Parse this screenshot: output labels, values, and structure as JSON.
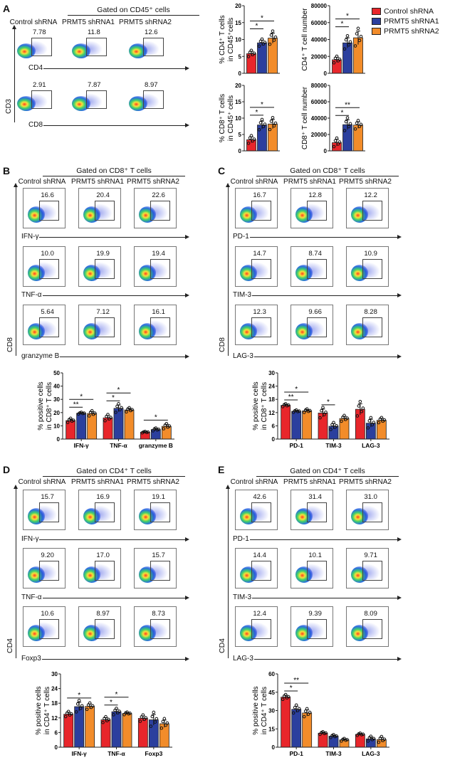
{
  "colors": {
    "control": "#e8262b",
    "shRNA1": "#2b3f9e",
    "shRNA2": "#f28c2a"
  },
  "legend": [
    {
      "label": "Control shRNA",
      "color_key": "control"
    },
    {
      "label": "PRMT5 shRNA1",
      "color_key": "shRNA1"
    },
    {
      "label": "PRMT5 shRNA2",
      "color_key": "shRNA2"
    }
  ],
  "panels": {
    "A": {
      "letter": "A",
      "header": "Gated on CD45⁺ cells",
      "columns": [
        "Control shRNA",
        "PRMT5 shRNA1",
        "PRMT5 shRNA2"
      ],
      "y_axis": "CD3",
      "rows": [
        {
          "marker": "CD4",
          "values": [
            "7.78",
            "11.8",
            "12.6"
          ]
        },
        {
          "marker": "CD8",
          "values": [
            "2.91",
            "7.87",
            "8.97"
          ]
        }
      ]
    },
    "B": {
      "letter": "B",
      "header": "Gated on CD8⁺ T cells",
      "columns": [
        "Control shRNA",
        "PRMT5 shRNA1",
        "PRMT5 shRNA2"
      ],
      "y_axis": "CD8",
      "rows": [
        {
          "marker": "IFN-γ",
          "values": [
            "16.6",
            "20.4",
            "22.6"
          ]
        },
        {
          "marker": "TNF-α",
          "values": [
            "10.0",
            "19.9",
            "19.4"
          ]
        },
        {
          "marker": "granzyme  B",
          "values": [
            "5.64",
            "7.12",
            "16.1"
          ]
        }
      ]
    },
    "C": {
      "letter": "C",
      "header": "Gated on CD8⁺ T cells",
      "columns": [
        "Control shRNA",
        "PRMT5 shRNA1",
        "PRMT5 shRNA2"
      ],
      "y_axis": "CD8",
      "rows": [
        {
          "marker": "PD-1",
          "values": [
            "16.7",
            "12.8",
            "12.2"
          ]
        },
        {
          "marker": "TIM-3",
          "values": [
            "14.7",
            "8.74",
            "10.9"
          ]
        },
        {
          "marker": "LAG-3",
          "values": [
            "12.3",
            "9.66",
            "8.28"
          ]
        }
      ]
    },
    "D": {
      "letter": "D",
      "header": "Gated on CD4⁺ T cells",
      "columns": [
        "Control shRNA",
        "PRMT5 shRNA1",
        "PRMT5 shRNA2"
      ],
      "y_axis": "CD4",
      "rows": [
        {
          "marker": "IFN-γ",
          "values": [
            "15.7",
            "16.9",
            "19.1"
          ]
        },
        {
          "marker": "TNF-α",
          "values": [
            "9.20",
            "17.0",
            "15.7"
          ]
        },
        {
          "marker": "Foxp3",
          "values": [
            "10.6",
            "8.97",
            "8.73"
          ]
        }
      ]
    },
    "E": {
      "letter": "E",
      "header": "Gated on CD4⁺ T cells",
      "columns": [
        "Control shRNA",
        "PRMT5 shRNA1",
        "PRMT5 shRNA2"
      ],
      "y_axis": "CD4",
      "rows": [
        {
          "marker": "PD-1",
          "values": [
            "42.6",
            "31.4",
            "31.0"
          ]
        },
        {
          "marker": "TIM-3",
          "values": [
            "14.4",
            "10.1",
            "9.71"
          ]
        },
        {
          "marker": "LAG-3",
          "values": [
            "12.4",
            "9.39",
            "8.09"
          ]
        }
      ]
    }
  },
  "chart_data": [
    {
      "id": "A1",
      "type": "bar",
      "ylabel": [
        "% CD4⁺ T cells",
        "in CD45⁺cells"
      ],
      "ylim": [
        0,
        20
      ],
      "yticks": [
        "0",
        "5",
        "10",
        "15",
        "20"
      ],
      "categories": [
        ""
      ],
      "series": [
        {
          "name": "Control shRNA",
          "values": [
            5.8
          ],
          "err": [
            0.7
          ]
        },
        {
          "name": "PRMT5 shRNA1",
          "values": [
            9.0
          ],
          "err": [
            0.8
          ]
        },
        {
          "name": "PRMT5 shRNA2",
          "values": [
            10.4
          ],
          "err": [
            1.5
          ]
        }
      ],
      "significance": [
        {
          "cat": 0,
          "from": 0,
          "to": 1,
          "label": "*"
        },
        {
          "cat": 0,
          "from": 0,
          "to": 2,
          "label": "*"
        }
      ]
    },
    {
      "id": "A2",
      "type": "bar",
      "ylabel": [
        "CD4⁺ T cell number"
      ],
      "ylim": [
        0,
        80000
      ],
      "yticks": [
        "0",
        "20000",
        "40000",
        "60000",
        "80000"
      ],
      "categories": [
        ""
      ],
      "series": [
        {
          "name": "Control shRNA",
          "values": [
            16000
          ],
          "err": [
            3000
          ]
        },
        {
          "name": "PRMT5 shRNA1",
          "values": [
            36000
          ],
          "err": [
            6000
          ]
        },
        {
          "name": "PRMT5 shRNA2",
          "values": [
            42000
          ],
          "err": [
            8000
          ]
        }
      ],
      "significance": [
        {
          "cat": 0,
          "from": 0,
          "to": 1,
          "label": "*"
        },
        {
          "cat": 0,
          "from": 0,
          "to": 2,
          "label": "*"
        }
      ]
    },
    {
      "id": "A3",
      "type": "bar",
      "ylabel": [
        "% CD8⁺ T cells",
        "in CD45⁺ cells"
      ],
      "ylim": [
        0,
        20
      ],
      "yticks": [
        "0",
        "5",
        "10",
        "15",
        "20"
      ],
      "categories": [
        ""
      ],
      "series": [
        {
          "name": "Control shRNA",
          "values": [
            3.4
          ],
          "err": [
            0.9
          ]
        },
        {
          "name": "PRMT5 shRNA1",
          "values": [
            7.9
          ],
          "err": [
            1.2
          ]
        },
        {
          "name": "PRMT5 shRNA2",
          "values": [
            8.2
          ],
          "err": [
            1.4
          ]
        }
      ],
      "significance": [
        {
          "cat": 0,
          "from": 0,
          "to": 1,
          "label": "*"
        },
        {
          "cat": 0,
          "from": 0,
          "to": 2,
          "label": "*"
        }
      ]
    },
    {
      "id": "A4",
      "type": "bar",
      "ylabel": [
        "CD8⁺ T cell number"
      ],
      "ylim": [
        0,
        80000
      ],
      "yticks": [
        "0",
        "20000",
        "40000",
        "60000",
        "80000"
      ],
      "categories": [
        ""
      ],
      "series": [
        {
          "name": "Control shRNA",
          "values": [
            10000
          ],
          "err": [
            4000
          ]
        },
        {
          "name": "PRMT5 shRNA1",
          "values": [
            32000
          ],
          "err": [
            6000
          ]
        },
        {
          "name": "PRMT5 shRNA2",
          "values": [
            31500
          ],
          "err": [
            4000
          ]
        }
      ],
      "significance": [
        {
          "cat": 0,
          "from": 0,
          "to": 1,
          "label": "*"
        },
        {
          "cat": 0,
          "from": 0,
          "to": 2,
          "label": "**"
        }
      ]
    },
    {
      "id": "B",
      "type": "bar",
      "ylabel": [
        "% positive cells",
        "in CD8⁺ T cells"
      ],
      "ylim": [
        0,
        50
      ],
      "yticks": [
        "0",
        "10",
        "20",
        "30",
        "40",
        "50"
      ],
      "categories": [
        "IFN-γ",
        "TNF-α",
        "granzyme B"
      ],
      "series": [
        {
          "name": "Control shRNA",
          "values": [
            14,
            16,
            5.2
          ],
          "err": [
            1.2,
            1.8,
            0.4
          ]
        },
        {
          "name": "PRMT5 shRNA1",
          "values": [
            19.5,
            23.2,
            7.2
          ],
          "err": [
            0.5,
            2.5,
            0.8
          ]
        },
        {
          "name": "PRMT5 shRNA2",
          "values": [
            19.3,
            22,
            9.6
          ],
          "err": [
            1.5,
            1.2,
            1.5
          ]
        }
      ],
      "significance": [
        {
          "cat": 0,
          "from": 0,
          "to": 1,
          "label": "**"
        },
        {
          "cat": 0,
          "from": 0,
          "to": 2,
          "label": "*"
        },
        {
          "cat": 1,
          "from": 0,
          "to": 1,
          "label": "*"
        },
        {
          "cat": 1,
          "from": 0,
          "to": 2,
          "label": "*"
        },
        {
          "cat": 2,
          "from": 0,
          "to": 2,
          "label": "*"
        }
      ]
    },
    {
      "id": "C",
      "type": "bar",
      "ylabel": [
        "% positive cells",
        "in CD8⁺ T cells"
      ],
      "ylim": [
        0,
        30
      ],
      "yticks": [
        "0",
        "6",
        "12",
        "18",
        "24",
        "30"
      ],
      "categories": [
        "PD-1",
        "TIM-3",
        "LAG-3"
      ],
      "series": [
        {
          "name": "Control shRNA",
          "values": [
            15.3,
            11.8,
            13.5
          ],
          "err": [
            0.5,
            1.8,
            2.5
          ]
        },
        {
          "name": "PRMT5 shRNA1",
          "values": [
            12.6,
            5.8,
            7.2
          ],
          "err": [
            0.4,
            1.2,
            1.8
          ]
        },
        {
          "name": "PRMT5 shRNA2",
          "values": [
            12.8,
            9.3,
            8.5
          ],
          "err": [
            0.6,
            1.0,
            0.9
          ]
        }
      ],
      "significance": [
        {
          "cat": 0,
          "from": 0,
          "to": 1,
          "label": "**"
        },
        {
          "cat": 0,
          "from": 0,
          "to": 2,
          "label": "*"
        },
        {
          "cat": 1,
          "from": 0,
          "to": 1,
          "label": "*"
        }
      ]
    },
    {
      "id": "D",
      "type": "bar",
      "ylabel": [
        "% positive cells",
        "in CD4⁺ T cells"
      ],
      "ylim": [
        0,
        30
      ],
      "yticks": [
        "0",
        "6",
        "12",
        "18",
        "24",
        "30"
      ],
      "categories": [
        "IFN-γ",
        "TNF-α",
        "Foxp3"
      ],
      "series": [
        {
          "name": "Control shRNA",
          "values": [
            13.5,
            11.2,
            11.8
          ],
          "err": [
            0.8,
            0.9,
            1.0
          ]
        },
        {
          "name": "PRMT5 shRNA1",
          "values": [
            16.6,
            14.5,
            11.2
          ],
          "err": [
            1.8,
            1.0,
            2.2
          ]
        },
        {
          "name": "PRMT5 shRNA2",
          "values": [
            16.7,
            13.8,
            9.6
          ],
          "err": [
            1.0,
            0.4,
            1.5
          ]
        }
      ],
      "significance": [
        {
          "cat": 0,
          "from": 0,
          "to": 2,
          "label": "*"
        },
        {
          "cat": 1,
          "from": 0,
          "to": 1,
          "label": "*"
        },
        {
          "cat": 1,
          "from": 0,
          "to": 2,
          "label": "*"
        }
      ]
    },
    {
      "id": "E",
      "type": "bar",
      "ylabel": [
        "% positive cells",
        "in CD4⁺ T cells"
      ],
      "ylim": [
        0,
        60
      ],
      "yticks": [
        "0",
        "15",
        "30",
        "45",
        "60"
      ],
      "categories": [
        "PD-1",
        "TIM-3",
        "LAG-3"
      ],
      "series": [
        {
          "name": "Control shRNA",
          "values": [
            41,
            11.5,
            10.5
          ],
          "err": [
            1.5,
            0.8,
            0.7
          ]
        },
        {
          "name": "PRMT5 shRNA1",
          "values": [
            31,
            9,
            6.8
          ],
          "err": [
            2.5,
            0.9,
            1.5
          ]
        },
        {
          "name": "PRMT5 shRNA2",
          "values": [
            28,
            6,
            6.2
          ],
          "err": [
            2.5,
            0.8,
            1.8
          ]
        }
      ],
      "significance": [
        {
          "cat": 0,
          "from": 0,
          "to": 1,
          "label": "*"
        },
        {
          "cat": 0,
          "from": 0,
          "to": 2,
          "label": "**"
        }
      ]
    }
  ]
}
